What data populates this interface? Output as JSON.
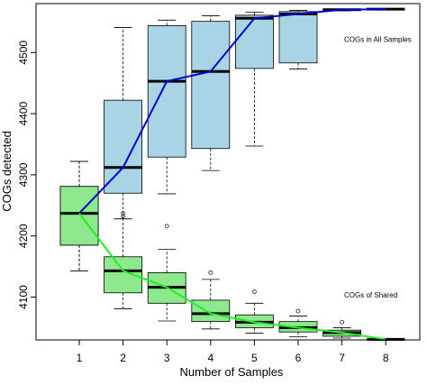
{
  "chart_data": {
    "type": "boxplot",
    "title": "",
    "xlabel": "Number of Samples",
    "ylabel": "COGs detected",
    "categories": [
      "1",
      "2",
      "3",
      "4",
      "5",
      "6",
      "7",
      "8"
    ],
    "y_ticks": [
      "4100",
      "4200",
      "4300",
      "4400",
      "4500"
    ],
    "ylim": [
      4030,
      4580
    ],
    "grid": false,
    "series": [
      {
        "name": "COGs in All Samples",
        "fill": "#a8d4e6",
        "line_color": "#0000cc",
        "boxes": [
          {
            "x": 1,
            "whislo": 4143,
            "q1": 4185,
            "med": 4237,
            "q3": 4281,
            "whishi": 4322,
            "fliers": []
          },
          {
            "x": 2,
            "whislo": 4228,
            "q1": 4270,
            "med": 4312,
            "q3": 4422,
            "whishi": 4541,
            "fliers": []
          },
          {
            "x": 3,
            "whislo": 4269,
            "q1": 4329,
            "med": 4453,
            "q3": 4544,
            "whishi": 4553,
            "fliers": []
          },
          {
            "x": 4,
            "whislo": 4307,
            "q1": 4343,
            "med": 4469,
            "q3": 4551,
            "whishi": 4560,
            "fliers": []
          },
          {
            "x": 5,
            "whislo": 4347,
            "q1": 4474,
            "med": 4556,
            "q3": 4561,
            "whishi": 4566,
            "fliers": []
          },
          {
            "x": 6,
            "whislo": 4473,
            "q1": 4483,
            "med": 4563,
            "q3": 4567,
            "whishi": 4569,
            "fliers": []
          },
          {
            "x": 7,
            "whislo": 4568,
            "q1": 4569,
            "med": 4570,
            "q3": 4571,
            "whishi": 4571,
            "fliers": []
          },
          {
            "x": 8,
            "whislo": 4571,
            "q1": 4571,
            "med": 4571,
            "q3": 4571,
            "whishi": 4571,
            "fliers": []
          }
        ]
      },
      {
        "name": "COGs of Shared",
        "fill": "#8ee88e",
        "line_color": "#22ee22",
        "boxes": [
          {
            "x": 1,
            "whislo": 4143,
            "q1": 4185,
            "med": 4237,
            "q3": 4281,
            "whishi": 4322,
            "fliers": []
          },
          {
            "x": 2,
            "whislo": 4081,
            "q1": 4107,
            "med": 4143,
            "q3": 4166,
            "whishi": 4228,
            "fliers": [
              4232,
              4237
            ]
          },
          {
            "x": 3,
            "whislo": 4061,
            "q1": 4090,
            "med": 4116,
            "q3": 4140,
            "whishi": 4178,
            "fliers": [
              4216
            ]
          },
          {
            "x": 4,
            "whislo": 4048,
            "q1": 4060,
            "med": 4073,
            "q3": 4095,
            "whishi": 4129,
            "fliers": [
              4140
            ]
          },
          {
            "x": 5,
            "whislo": 4041,
            "q1": 4050,
            "med": 4059,
            "q3": 4071,
            "whishi": 4090,
            "fliers": [
              4109
            ]
          },
          {
            "x": 6,
            "whislo": 4035,
            "q1": 4043,
            "med": 4050,
            "q3": 4060,
            "whishi": 4069,
            "fliers": [
              4077
            ]
          },
          {
            "x": 7,
            "whislo": 4033,
            "q1": 4036,
            "med": 4042,
            "q3": 4046,
            "whishi": 4050,
            "fliers": [
              4059
            ]
          },
          {
            "x": 8,
            "whislo": 4031,
            "q1": 4031,
            "med": 4031,
            "q3": 4031,
            "whishi": 4031,
            "fliers": []
          }
        ]
      }
    ],
    "annotations": [
      {
        "text": "COGs in All Samples",
        "x": 7.05,
        "y": 4517
      },
      {
        "text": "COGs of Shared",
        "x": 7.05,
        "y": 4099
      }
    ]
  }
}
